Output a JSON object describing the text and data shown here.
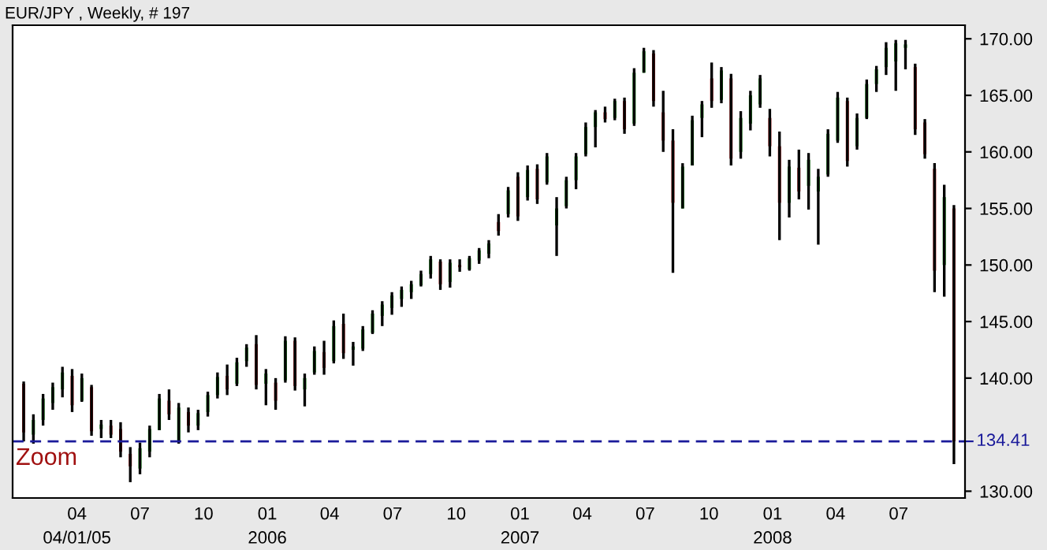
{
  "chart_data": {
    "type": "candlestick",
    "title": "EUR/JPY , Weekly, # 197",
    "annotations": [
      "Zoom"
    ],
    "x": [
      "2005-01-14",
      "2005-01-28",
      "2005-02-11",
      "2005-02-25",
      "2005-03-11",
      "2005-03-25",
      "2005-04-08",
      "2005-04-22",
      "2005-05-06",
      "2005-05-20",
      "2005-06-03",
      "2005-06-17",
      "2005-07-01",
      "2005-07-15",
      "2005-07-29",
      "2005-08-12",
      "2005-08-26",
      "2005-09-09",
      "2005-09-23",
      "2005-10-07",
      "2005-10-21",
      "2005-11-04",
      "2005-11-18",
      "2005-12-02",
      "2005-12-16",
      "2005-12-30",
      "2006-01-13",
      "2006-01-27",
      "2006-02-10",
      "2006-02-24",
      "2006-03-10",
      "2006-03-24",
      "2006-04-07",
      "2006-04-21",
      "2006-05-05",
      "2006-05-19",
      "2006-06-02",
      "2006-06-16",
      "2006-06-30",
      "2006-07-14",
      "2006-07-28",
      "2006-08-11",
      "2006-08-25",
      "2006-09-08",
      "2006-09-22",
      "2006-10-06",
      "2006-10-20",
      "2006-11-03",
      "2006-11-17",
      "2006-12-01",
      "2006-12-15",
      "2006-12-29",
      "2007-01-12",
      "2007-01-26",
      "2007-02-09",
      "2007-02-23",
      "2007-03-09",
      "2007-03-23",
      "2007-04-06",
      "2007-04-20",
      "2007-05-04",
      "2007-05-18",
      "2007-06-01",
      "2007-06-15",
      "2007-06-29",
      "2007-07-13",
      "2007-07-27",
      "2007-08-10",
      "2007-08-24",
      "2007-09-07",
      "2007-09-21",
      "2007-10-05",
      "2007-10-19",
      "2007-11-02",
      "2007-11-16",
      "2007-11-30",
      "2007-12-14",
      "2007-12-28",
      "2008-01-11",
      "2008-01-25",
      "2008-02-08",
      "2008-02-22",
      "2008-03-07",
      "2008-03-21",
      "2008-04-04",
      "2008-04-18",
      "2008-05-02",
      "2008-05-16",
      "2008-05-30",
      "2008-06-13",
      "2008-06-27",
      "2008-07-11",
      "2008-07-25",
      "2008-08-08",
      "2008-08-22",
      "2008-09-05",
      "2008-09-19"
    ],
    "ohlc": [
      [
        139.5,
        139.7,
        134.4,
        135.2
      ],
      [
        135.0,
        136.8,
        134.2,
        136.3
      ],
      [
        136.3,
        138.6,
        135.8,
        138.2
      ],
      [
        137.8,
        139.6,
        137.2,
        139.2
      ],
      [
        139.0,
        141.0,
        138.3,
        140.5
      ],
      [
        140.2,
        140.8,
        137.0,
        137.6
      ],
      [
        138.0,
        140.4,
        137.9,
        140.0
      ],
      [
        139.2,
        139.4,
        134.9,
        135.3
      ],
      [
        135.5,
        136.3,
        134.7,
        135.9
      ],
      [
        135.8,
        136.3,
        134.7,
        135.0
      ],
      [
        135.5,
        136.1,
        133.0,
        133.5
      ],
      [
        133.3,
        133.9,
        130.8,
        132.2
      ],
      [
        132.0,
        134.3,
        131.5,
        133.8
      ],
      [
        133.5,
        135.8,
        133.0,
        135.5
      ],
      [
        135.4,
        138.6,
        135.4,
        138.2
      ],
      [
        138.0,
        139.0,
        136.3,
        136.8
      ],
      [
        134.5,
        137.8,
        134.2,
        137.4
      ],
      [
        137.0,
        137.4,
        135.2,
        135.8
      ],
      [
        135.8,
        137.2,
        135.4,
        136.9
      ],
      [
        137.0,
        138.8,
        136.6,
        138.5
      ],
      [
        138.5,
        140.5,
        138.2,
        140.1
      ],
      [
        140.2,
        141.2,
        138.5,
        139.0
      ],
      [
        139.5,
        141.8,
        139.3,
        141.4
      ],
      [
        141.5,
        143.0,
        141.0,
        142.7
      ],
      [
        143.0,
        143.8,
        139.0,
        139.4
      ],
      [
        139.5,
        140.8,
        137.6,
        140.4
      ],
      [
        139.6,
        140.0,
        137.2,
        138.0
      ],
      [
        139.8,
        143.7,
        139.6,
        143.3
      ],
      [
        143.3,
        143.6,
        138.9,
        139.3
      ],
      [
        139.0,
        140.4,
        137.5,
        140.0
      ],
      [
        140.5,
        142.8,
        140.3,
        142.4
      ],
      [
        142.3,
        143.3,
        140.3,
        140.9
      ],
      [
        141.5,
        145.1,
        141.3,
        144.6
      ],
      [
        144.8,
        145.7,
        141.7,
        142.2
      ],
      [
        142.5,
        143.2,
        141.1,
        142.8
      ],
      [
        142.6,
        144.6,
        142.4,
        144.3
      ],
      [
        144.0,
        146.0,
        143.9,
        145.7
      ],
      [
        145.5,
        146.8,
        144.6,
        146.5
      ],
      [
        146.2,
        147.6,
        145.6,
        147.3
      ],
      [
        147.0,
        148.1,
        146.3,
        147.8
      ],
      [
        147.6,
        148.6,
        147.0,
        148.3
      ],
      [
        148.2,
        149.5,
        148.1,
        149.2
      ],
      [
        149.2,
        150.8,
        148.8,
        150.5
      ],
      [
        150.3,
        150.5,
        147.8,
        148.3
      ],
      [
        148.5,
        150.5,
        148.0,
        150.2
      ],
      [
        150.0,
        150.5,
        149.4,
        149.8
      ],
      [
        149.6,
        150.8,
        149.5,
        150.6
      ],
      [
        150.4,
        151.5,
        150.1,
        151.3
      ],
      [
        151.0,
        152.2,
        150.6,
        151.9
      ],
      [
        153.8,
        154.5,
        152.6,
        153.0
      ],
      [
        154.5,
        156.9,
        154.2,
        156.6
      ],
      [
        157.8,
        158.2,
        153.9,
        154.3
      ],
      [
        156.0,
        158.8,
        155.7,
        158.4
      ],
      [
        158.5,
        158.9,
        155.4,
        155.8
      ],
      [
        157.3,
        159.9,
        157.1,
        159.6
      ],
      [
        153.5,
        156.0,
        150.8,
        155.0
      ],
      [
        155.2,
        157.8,
        155.0,
        157.5
      ],
      [
        157.5,
        159.9,
        156.7,
        159.6
      ],
      [
        159.8,
        162.6,
        159.6,
        162.2
      ],
      [
        162.2,
        163.7,
        160.4,
        163.5
      ],
      [
        163.5,
        164.0,
        162.6,
        162.9
      ],
      [
        163.0,
        164.7,
        162.8,
        164.5
      ],
      [
        164.5,
        164.8,
        161.6,
        162.0
      ],
      [
        162.5,
        167.4,
        162.3,
        167.0
      ],
      [
        167.0,
        169.2,
        167.0,
        168.9
      ],
      [
        168.7,
        169.0,
        164.0,
        164.5
      ],
      [
        163.5,
        165.4,
        160.0,
        161.0
      ],
      [
        161.0,
        162.0,
        149.3,
        155.5
      ],
      [
        155.0,
        159.0,
        155.0,
        158.7
      ],
      [
        158.8,
        163.2,
        158.8,
        162.8
      ],
      [
        163.0,
        164.5,
        161.3,
        164.2
      ],
      [
        166.5,
        167.9,
        163.9,
        164.5
      ],
      [
        164.6,
        167.5,
        164.3,
        167.2
      ],
      [
        166.5,
        166.9,
        158.8,
        159.4
      ],
      [
        160.0,
        163.6,
        159.4,
        163.0
      ],
      [
        162.5,
        165.4,
        161.9,
        165.0
      ],
      [
        164.2,
        166.8,
        163.9,
        166.5
      ],
      [
        163.0,
        163.8,
        159.6,
        160.5
      ],
      [
        160.5,
        161.8,
        152.2,
        155.5
      ],
      [
        155.5,
        159.3,
        154.2,
        158.7
      ],
      [
        158.6,
        160.2,
        155.8,
        156.5
      ],
      [
        157.0,
        159.9,
        154.9,
        159.3
      ],
      [
        156.5,
        158.5,
        151.8,
        157.8
      ],
      [
        158.0,
        162.0,
        157.8,
        161.6
      ],
      [
        161.0,
        165.3,
        160.8,
        164.8
      ],
      [
        164.5,
        164.8,
        158.7,
        159.2
      ],
      [
        160.5,
        163.4,
        160.2,
        163.0
      ],
      [
        163.0,
        166.4,
        162.9,
        166.0
      ],
      [
        166.0,
        167.6,
        165.3,
        167.3
      ],
      [
        167.5,
        169.7,
        166.8,
        169.2
      ],
      [
        168.0,
        169.9,
        165.4,
        169.6
      ],
      [
        169.2,
        169.9,
        167.3,
        169.5
      ],
      [
        167.5,
        167.8,
        161.5,
        162.0
      ],
      [
        162.6,
        162.9,
        159.4,
        159.8
      ],
      [
        158.5,
        159.0,
        147.6,
        149.5
      ],
      [
        150.0,
        157.1,
        147.2,
        156.0
      ],
      [
        155.0,
        155.3,
        132.4,
        134.41
      ]
    ],
    "xlim": [
      "2004-12-29",
      "2008-10-05"
    ],
    "xticks": [
      {
        "value": "2005-04-01",
        "label": "04\n04/01/05"
      },
      {
        "value": "2005-07-01",
        "label": "07"
      },
      {
        "value": "2005-10-01",
        "label": "10"
      },
      {
        "value": "2006-01-01",
        "label": "01\n2006"
      },
      {
        "value": "2006-04-01",
        "label": "04"
      },
      {
        "value": "2006-07-01",
        "label": "07"
      },
      {
        "value": "2006-10-01",
        "label": "10"
      },
      {
        "value": "2007-01-01",
        "label": "01\n2007"
      },
      {
        "value": "2007-04-01",
        "label": "04"
      },
      {
        "value": "2007-07-01",
        "label": "07"
      },
      {
        "value": "2007-10-01",
        "label": "10"
      },
      {
        "value": "2008-01-01",
        "label": "01\n2008"
      },
      {
        "value": "2008-04-01",
        "label": "04"
      },
      {
        "value": "2008-07-01",
        "label": "07"
      }
    ],
    "ylim": [
      129.4,
      171.2
    ],
    "yticks": [
      {
        "value": 130,
        "label": "130.00"
      },
      {
        "value": 140,
        "label": "140.00"
      },
      {
        "value": 145,
        "label": "145.00"
      },
      {
        "value": 150,
        "label": "150.00"
      },
      {
        "value": 155,
        "label": "155.00"
      },
      {
        "value": 160,
        "label": "160.00"
      },
      {
        "value": 165,
        "label": "165.00"
      },
      {
        "value": 170,
        "label": "170.00"
      }
    ],
    "ref_lines": [
      {
        "axis": "y",
        "value": 134.41,
        "label": "134.41",
        "color": "#1a1a9a",
        "line_style": "dashed"
      }
    ]
  }
}
